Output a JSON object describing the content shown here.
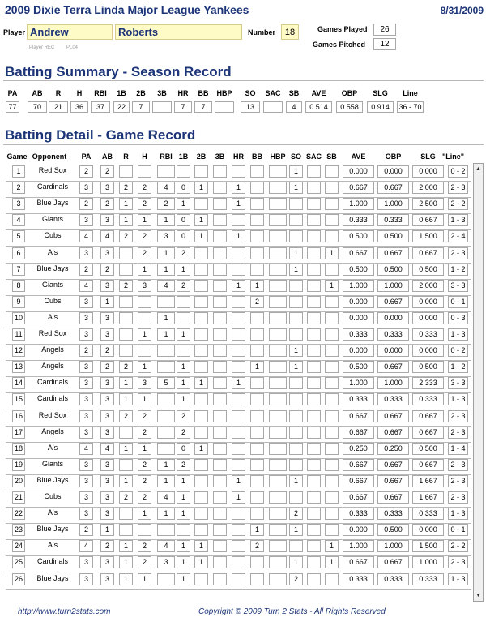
{
  "header": {
    "title": "2009 Dixie Terra Linda Major League Yankees",
    "date": "8/31/2009"
  },
  "player": {
    "label": "Player",
    "first": "Andrew",
    "last": "Roberts",
    "number_label": "Number",
    "number": "18",
    "games_played_label": "Games Played",
    "games_played": "26",
    "games_pitched_label": "Games Pitched",
    "games_pitched": "12",
    "rec_label": "Player REC",
    "rec_code": "PL04"
  },
  "summary": {
    "title": "Batting Summary - Season Record",
    "headers": [
      "PA",
      "AB",
      "R",
      "H",
      "RBI",
      "1B",
      "2B",
      "3B",
      "HR",
      "BB",
      "HBP",
      "SO",
      "SAC",
      "SB",
      "AVE",
      "OBP",
      "SLG",
      "Line"
    ],
    "values": [
      "77",
      "70",
      "21",
      "36",
      "37",
      "22",
      "7",
      "",
      "7",
      "7",
      "",
      "13",
      "",
      "4",
      "0.514",
      "0.558",
      "0.914",
      "36 - 70"
    ]
  },
  "detail": {
    "title": "Batting Detail - Game Record",
    "headers": [
      "Game",
      "Opponent",
      "PA",
      "AB",
      "R",
      "H",
      "RBI",
      "1B",
      "2B",
      "3B",
      "HR",
      "BB",
      "HBP",
      "SO",
      "SAC",
      "SB",
      "AVE",
      "OBP",
      "SLG",
      "\"Line\""
    ],
    "games": [
      [
        "1",
        "Red Sox",
        "2",
        "2",
        "",
        "",
        "",
        "",
        "",
        "",
        "",
        "",
        "",
        "1",
        "",
        "",
        "0.000",
        "0.000",
        "0.000",
        "0 - 2"
      ],
      [
        "2",
        "Cardinals",
        "3",
        "3",
        "2",
        "2",
        "4",
        "0",
        "1",
        "",
        "1",
        "",
        "",
        "1",
        "",
        "",
        "0.667",
        "0.667",
        "2.000",
        "2 - 3"
      ],
      [
        "3",
        "Blue Jays",
        "2",
        "2",
        "1",
        "2",
        "2",
        "1",
        "",
        "",
        "1",
        "",
        "",
        "",
        "",
        "",
        "1.000",
        "1.000",
        "2.500",
        "2 - 2"
      ],
      [
        "4",
        "Giants",
        "3",
        "3",
        "1",
        "1",
        "1",
        "0",
        "1",
        "",
        "",
        "",
        "",
        "",
        "",
        "",
        "0.333",
        "0.333",
        "0.667",
        "1 - 3"
      ],
      [
        "5",
        "Cubs",
        "4",
        "4",
        "2",
        "2",
        "3",
        "0",
        "1",
        "",
        "1",
        "",
        "",
        "",
        "",
        "",
        "0.500",
        "0.500",
        "1.500",
        "2 - 4"
      ],
      [
        "6",
        "A's",
        "3",
        "3",
        "",
        "2",
        "1",
        "2",
        "",
        "",
        "",
        "",
        "",
        "1",
        "",
        "1",
        "0.667",
        "0.667",
        "0.667",
        "2 - 3"
      ],
      [
        "7",
        "Blue Jays",
        "2",
        "2",
        "",
        "1",
        "1",
        "1",
        "",
        "",
        "",
        "",
        "",
        "1",
        "",
        "",
        "0.500",
        "0.500",
        "0.500",
        "1 - 2"
      ],
      [
        "8",
        "Giants",
        "4",
        "3",
        "2",
        "3",
        "4",
        "2",
        "",
        "",
        "1",
        "1",
        "",
        "",
        "",
        "1",
        "1.000",
        "1.000",
        "2.000",
        "3 - 3"
      ],
      [
        "9",
        "Cubs",
        "3",
        "1",
        "",
        "",
        "",
        "",
        "",
        "",
        "",
        "2",
        "",
        "",
        "",
        "",
        "0.000",
        "0.667",
        "0.000",
        "0 - 1"
      ],
      [
        "10",
        "A's",
        "3",
        "3",
        "",
        "",
        "1",
        "",
        "",
        "",
        "",
        "",
        "",
        "",
        "",
        "",
        "0.000",
        "0.000",
        "0.000",
        "0 - 3"
      ],
      [
        "11",
        "Red Sox",
        "3",
        "3",
        "",
        "1",
        "1",
        "1",
        "",
        "",
        "",
        "",
        "",
        "",
        "",
        "",
        "0.333",
        "0.333",
        "0.333",
        "1 - 3"
      ],
      [
        "12",
        "Angels",
        "2",
        "2",
        "",
        "",
        "",
        "",
        "",
        "",
        "",
        "",
        "",
        "1",
        "",
        "",
        "0.000",
        "0.000",
        "0.000",
        "0 - 2"
      ],
      [
        "13",
        "Angels",
        "3",
        "2",
        "2",
        "1",
        "",
        "1",
        "",
        "",
        "",
        "1",
        "",
        "1",
        "",
        "",
        "0.500",
        "0.667",
        "0.500",
        "1 - 2"
      ],
      [
        "14",
        "Cardinals",
        "3",
        "3",
        "1",
        "3",
        "5",
        "1",
        "1",
        "",
        "1",
        "",
        "",
        "",
        "",
        "",
        "1.000",
        "1.000",
        "2.333",
        "3 - 3"
      ],
      [
        "15",
        "Cardinals",
        "3",
        "3",
        "1",
        "1",
        "",
        "1",
        "",
        "",
        "",
        "",
        "",
        "",
        "",
        "",
        "0.333",
        "0.333",
        "0.333",
        "1 - 3"
      ],
      [
        "16",
        "Red Sox",
        "3",
        "3",
        "2",
        "2",
        "",
        "2",
        "",
        "",
        "",
        "",
        "",
        "",
        "",
        "",
        "0.667",
        "0.667",
        "0.667",
        "2 - 3"
      ],
      [
        "17",
        "Angels",
        "3",
        "3",
        "",
        "2",
        "",
        "2",
        "",
        "",
        "",
        "",
        "",
        "",
        "",
        "",
        "0.667",
        "0.667",
        "0.667",
        "2 - 3"
      ],
      [
        "18",
        "A's",
        "4",
        "4",
        "1",
        "1",
        "",
        "0",
        "1",
        "",
        "",
        "",
        "",
        "",
        "",
        "",
        "0.250",
        "0.250",
        "0.500",
        "1 - 4"
      ],
      [
        "19",
        "Giants",
        "3",
        "3",
        "",
        "2",
        "1",
        "2",
        "",
        "",
        "",
        "",
        "",
        "",
        "",
        "",
        "0.667",
        "0.667",
        "0.667",
        "2 - 3"
      ],
      [
        "20",
        "Blue Jays",
        "3",
        "3",
        "1",
        "2",
        "1",
        "1",
        "",
        "",
        "1",
        "",
        "",
        "1",
        "",
        "",
        "0.667",
        "0.667",
        "1.667",
        "2 - 3"
      ],
      [
        "21",
        "Cubs",
        "3",
        "3",
        "2",
        "2",
        "4",
        "1",
        "",
        "",
        "1",
        "",
        "",
        "",
        "",
        "",
        "0.667",
        "0.667",
        "1.667",
        "2 - 3"
      ],
      [
        "22",
        "A's",
        "3",
        "3",
        "",
        "1",
        "1",
        "1",
        "",
        "",
        "",
        "",
        "",
        "2",
        "",
        "",
        "0.333",
        "0.333",
        "0.333",
        "1 - 3"
      ],
      [
        "23",
        "Blue Jays",
        "2",
        "1",
        "",
        "",
        "",
        "",
        "",
        "",
        "",
        "1",
        "",
        "1",
        "",
        "",
        "0.000",
        "0.500",
        "0.000",
        "0 - 1"
      ],
      [
        "24",
        "A's",
        "4",
        "2",
        "1",
        "2",
        "4",
        "1",
        "1",
        "",
        "",
        "2",
        "",
        "",
        "",
        "1",
        "1.000",
        "1.000",
        "1.500",
        "2 - 2"
      ],
      [
        "25",
        "Cardinals",
        "3",
        "3",
        "1",
        "2",
        "3",
        "1",
        "1",
        "",
        "",
        "",
        "",
        "1",
        "",
        "1",
        "0.667",
        "0.667",
        "1.000",
        "2 - 3"
      ],
      [
        "26",
        "Blue Jays",
        "3",
        "3",
        "1",
        "1",
        "",
        "1",
        "",
        "",
        "",
        "",
        "",
        "2",
        "",
        "",
        "0.333",
        "0.333",
        "0.333",
        "1 - 3"
      ]
    ]
  },
  "footer": {
    "url": "http://www.turn2stats.com",
    "copyright": "Copyright © 2009 Turn 2 Stats - All Rights Reserved"
  },
  "colors": {
    "title": "#1c3478",
    "name_field": "#fffbc6"
  },
  "icons": {
    "scroll_up": "scroll-up-arrow-icon",
    "scroll_down": "scroll-down-arrow-icon"
  }
}
